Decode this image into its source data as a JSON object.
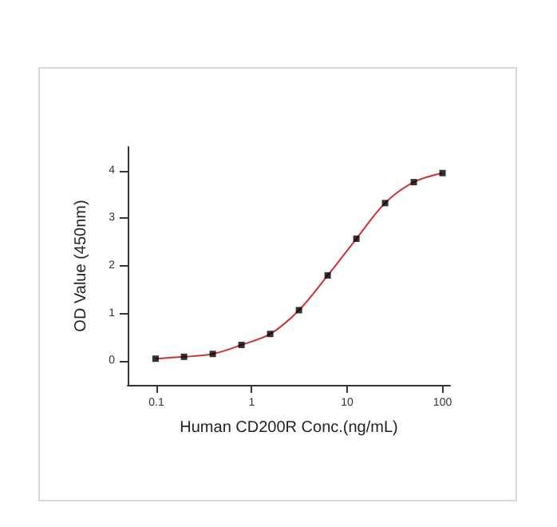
{
  "chart_data": {
    "type": "scatter",
    "xlabel": "Human CD200R Conc.(ng/mL)",
    "ylabel": "OD Value (450nm)",
    "log": "x",
    "grid": false,
    "xlim": [
      0.05,
      120
    ],
    "xticks": [
      0.1,
      1,
      10,
      100
    ],
    "ylim": [
      -0.5,
      4.5
    ],
    "yticks": [
      0,
      1,
      2,
      3,
      4
    ],
    "series": [
      {
        "type": "line",
        "color": "#d03030",
        "marker": "none",
        "line_style": "solid",
        "x": [
          0.098,
          0.195,
          0.39,
          0.78,
          1.56,
          3.125,
          6.25,
          12.5,
          25,
          50,
          100
        ],
        "values": [
          0.05,
          0.09,
          0.15,
          0.34,
          0.57,
          1.07,
          1.8,
          2.57,
          3.32,
          3.76,
          3.95
        ]
      },
      {
        "color": "#000000",
        "marker": "square",
        "x": [
          0.098,
          0.195,
          0.39,
          0.78,
          1.56,
          3.125,
          6.25,
          12.5,
          25,
          50,
          100
        ],
        "values": [
          0.05,
          0.09,
          0.15,
          0.34,
          0.57,
          1.07,
          1.8,
          2.57,
          3.32,
          3.76,
          3.95
        ]
      }
    ]
  }
}
